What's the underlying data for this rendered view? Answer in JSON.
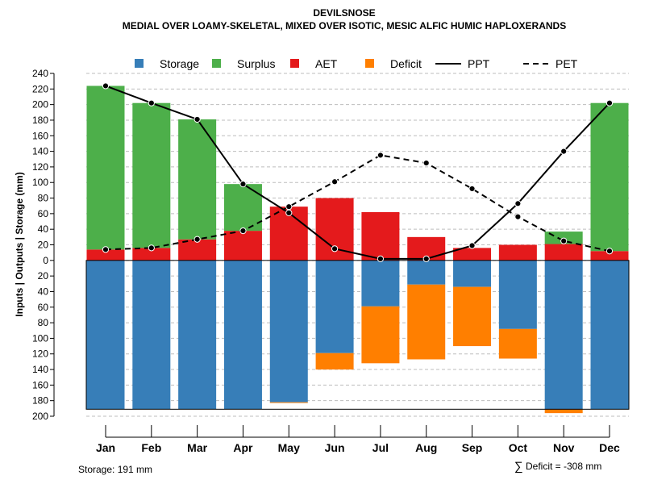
{
  "chart_data": {
    "type": "bar",
    "title": "DEVILSNOSE",
    "subtitle": "MEDIAL OVER LOAMY-SKELETAL, MIXED OVER ISOTIC, MESIC ALFIC HUMIC HAPLOXERANDS",
    "ylabel": "Inputs | Outputs | Storage     (mm)",
    "ylim": [
      -200,
      240
    ],
    "yticks": [
      -200,
      -180,
      -160,
      -140,
      -120,
      -100,
      -80,
      -60,
      -40,
      -20,
      0,
      20,
      40,
      60,
      80,
      100,
      120,
      140,
      160,
      180,
      200,
      220,
      240
    ],
    "ytick_labels": [
      "200",
      "180",
      "160",
      "140",
      "120",
      "100",
      "80",
      "60",
      "40",
      "20",
      "0",
      "20",
      "40",
      "60",
      "80",
      "100",
      "120",
      "140",
      "160",
      "180",
      "200",
      "220",
      "240"
    ],
    "gridlines": true,
    "categories": [
      "Jan",
      "Feb",
      "Mar",
      "Apr",
      "May",
      "Jun",
      "Jul",
      "Aug",
      "Sep",
      "Oct",
      "Nov",
      "Dec"
    ],
    "series": [
      {
        "name": "AET",
        "kind": "bar-above",
        "color": "#E41A1C",
        "values": [
          14,
          16,
          27,
          38,
          69,
          80,
          62,
          30,
          16,
          20,
          21,
          12
        ]
      },
      {
        "name": "Surplus",
        "kind": "bar-above",
        "color": "#4DAF4A",
        "values": [
          210,
          186,
          154,
          60,
          0,
          0,
          0,
          0,
          0,
          0,
          16,
          190
        ]
      },
      {
        "name": "Storage",
        "kind": "bar-below",
        "color": "#377EB8",
        "values": [
          191,
          191,
          191,
          191,
          182,
          119,
          59,
          31,
          34,
          88,
          191,
          191
        ]
      },
      {
        "name": "Deficit",
        "kind": "bar-below",
        "color": "#FF7F00",
        "values": [
          0,
          0,
          0,
          0,
          1,
          21,
          73,
          96,
          76,
          38,
          5,
          0
        ]
      },
      {
        "name": "PPT",
        "kind": "line-solid",
        "color": "#000000",
        "values": [
          224,
          202,
          181,
          98,
          61,
          15,
          2,
          2,
          19,
          73,
          140,
          202
        ]
      },
      {
        "name": "PET",
        "kind": "line-dashed",
        "color": "#000000",
        "values": [
          14,
          16,
          27,
          38,
          69,
          101,
          135,
          125,
          92,
          56,
          25,
          12
        ]
      }
    ],
    "legend": {
      "position": "top",
      "items": [
        {
          "label": "Storage",
          "kind": "box",
          "color": "#377EB8"
        },
        {
          "label": "Surplus",
          "kind": "box",
          "color": "#4DAF4A"
        },
        {
          "label": "AET",
          "kind": "box",
          "color": "#E41A1C"
        },
        {
          "label": "Deficit",
          "kind": "box",
          "color": "#FF7F00"
        },
        {
          "label": "PPT",
          "kind": "line-solid",
          "color": "#000000"
        },
        {
          "label": "PET",
          "kind": "line-dashed",
          "color": "#000000"
        }
      ]
    },
    "footnote_storage": "Storage: 191 mm",
    "footnote_deficit_symbol": "∑",
    "footnote_deficit": "Deficit = -308 mm"
  }
}
